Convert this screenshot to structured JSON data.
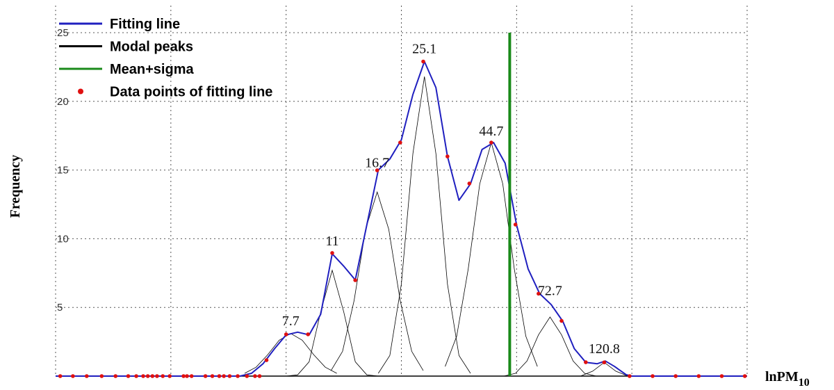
{
  "chart_data": {
    "type": "line",
    "y_label": "Frequency",
    "x_label": "lnPM",
    "x_label_sub": "10",
    "xlim": [
      0,
      6
    ],
    "xticks": [
      0,
      1,
      2,
      3,
      4,
      5,
      6
    ],
    "ylim": [
      0,
      25
    ],
    "yticks": [
      5,
      10,
      15,
      20,
      25
    ],
    "grid": true,
    "legend": "top-left",
    "fitting_line": {
      "name": "Fitting line",
      "color": "#1f1fbf",
      "x": [
        0,
        1.6,
        1.7,
        1.8,
        1.9,
        2.0,
        2.1,
        2.2,
        2.3,
        2.4,
        2.5,
        2.6,
        2.7,
        2.8,
        2.9,
        3.0,
        3.1,
        3.2,
        3.3,
        3.4,
        3.5,
        3.6,
        3.7,
        3.8,
        3.9,
        4.0,
        4.1,
        4.2,
        4.3,
        4.4,
        4.5,
        4.6,
        4.7,
        4.77,
        4.85,
        4.95,
        5.0,
        6.0
      ],
      "y": [
        0,
        0,
        0.2,
        0.9,
        2.0,
        3.0,
        3.2,
        3.0,
        4.5,
        8.9,
        8.0,
        7.0,
        11.0,
        15.0,
        15.8,
        17.2,
        20.5,
        22.9,
        21.0,
        16.0,
        12.8,
        14.0,
        16.5,
        17.0,
        15.5,
        11.0,
        7.8,
        6.0,
        5.2,
        4.0,
        2.0,
        1.0,
        0.9,
        1.1,
        0.7,
        0.1,
        0,
        0
      ]
    },
    "modal_peaks": {
      "name": "Modal peaks",
      "color": "#000000",
      "labels": [
        "7.7",
        "11",
        "16.7",
        "25.1",
        "44.7",
        "72.7",
        "120.8"
      ],
      "curves": [
        {
          "x": [
            1.64,
            1.74,
            1.84,
            1.94,
            2.04,
            2.14,
            2.24,
            2.34,
            2.44
          ],
          "y": [
            0.2,
            0.65,
            1.55,
            2.61,
            3.1,
            2.61,
            1.55,
            0.65,
            0.2
          ]
        },
        {
          "x": [
            2.0,
            2.1,
            2.2,
            2.3,
            2.4,
            2.5,
            2.6,
            2.7,
            2.8
          ],
          "y": [
            0,
            0.09,
            1.04,
            4.67,
            7.7,
            4.67,
            1.04,
            0.09,
            0
          ]
        },
        {
          "x": [
            2.39,
            2.49,
            2.59,
            2.69,
            2.79,
            2.89,
            2.99,
            3.09,
            3.19
          ],
          "y": [
            0.4,
            1.8,
            5.5,
            10.7,
            13.4,
            10.7,
            5.5,
            1.8,
            0.4
          ]
        },
        {
          "x": [
            2.8,
            2.9,
            3.0,
            3.1,
            3.2,
            3.3,
            3.4,
            3.5,
            3.6
          ],
          "y": [
            0.2,
            1.5,
            6.7,
            16.2,
            21.8,
            16.2,
            6.7,
            1.5,
            0.2
          ]
        },
        {
          "x": [
            3.38,
            3.48,
            3.58,
            3.68,
            3.78,
            3.88,
            3.98,
            4.08,
            4.18
          ],
          "y": [
            0.7,
            2.9,
            7.8,
            14.0,
            17.0,
            14.0,
            7.8,
            2.9,
            0.7
          ]
        },
        {
          "x": [
            3.89,
            3.99,
            4.09,
            4.19,
            4.29,
            4.39,
            4.49,
            4.59,
            4.69
          ],
          "y": [
            0,
            0.2,
            1.1,
            3.0,
            4.3,
            3.0,
            1.1,
            0.2,
            0
          ]
        },
        {
          "x": [
            4.56,
            4.66,
            4.76,
            4.86,
            4.96
          ],
          "y": [
            0.02,
            0.36,
            1.0,
            0.36,
            0.02
          ]
        }
      ]
    },
    "mean_sigma": {
      "name": "Mean+sigma",
      "color": "#1a8a1a",
      "x": [
        3.94,
        3.94
      ],
      "y": [
        0,
        25
      ]
    },
    "data_points": {
      "name": "Data points of fitting line",
      "color": "#e01010",
      "x": [
        0.04,
        0.15,
        0.27,
        0.4,
        0.52,
        0.63,
        0.7,
        0.76,
        0.8,
        0.84,
        0.88,
        0.93,
        0.99,
        1.11,
        1.14,
        1.18,
        1.3,
        1.36,
        1.42,
        1.46,
        1.51,
        1.58,
        1.66,
        1.73,
        1.77,
        1.83,
        2.0,
        2.19,
        2.4,
        2.6,
        2.79,
        2.99,
        3.19,
        3.4,
        3.59,
        3.78,
        3.99,
        4.19,
        4.39,
        4.6,
        4.76,
        4.98,
        5.18,
        5.38,
        5.58,
        5.78,
        5.98
      ],
      "y": [
        0,
        0,
        0,
        0,
        0,
        0,
        0,
        0,
        0,
        0,
        0,
        0,
        0,
        0,
        0,
        0,
        0,
        0,
        0,
        0,
        0,
        0,
        0,
        0,
        0,
        1.16,
        3.04,
        3.04,
        8.96,
        6.98,
        14.98,
        17.0,
        22.9,
        15.99,
        14.02,
        17.0,
        11.03,
        6.0,
        4.02,
        1.01,
        1.0,
        0,
        0,
        0,
        0,
        0,
        0
      ]
    }
  }
}
